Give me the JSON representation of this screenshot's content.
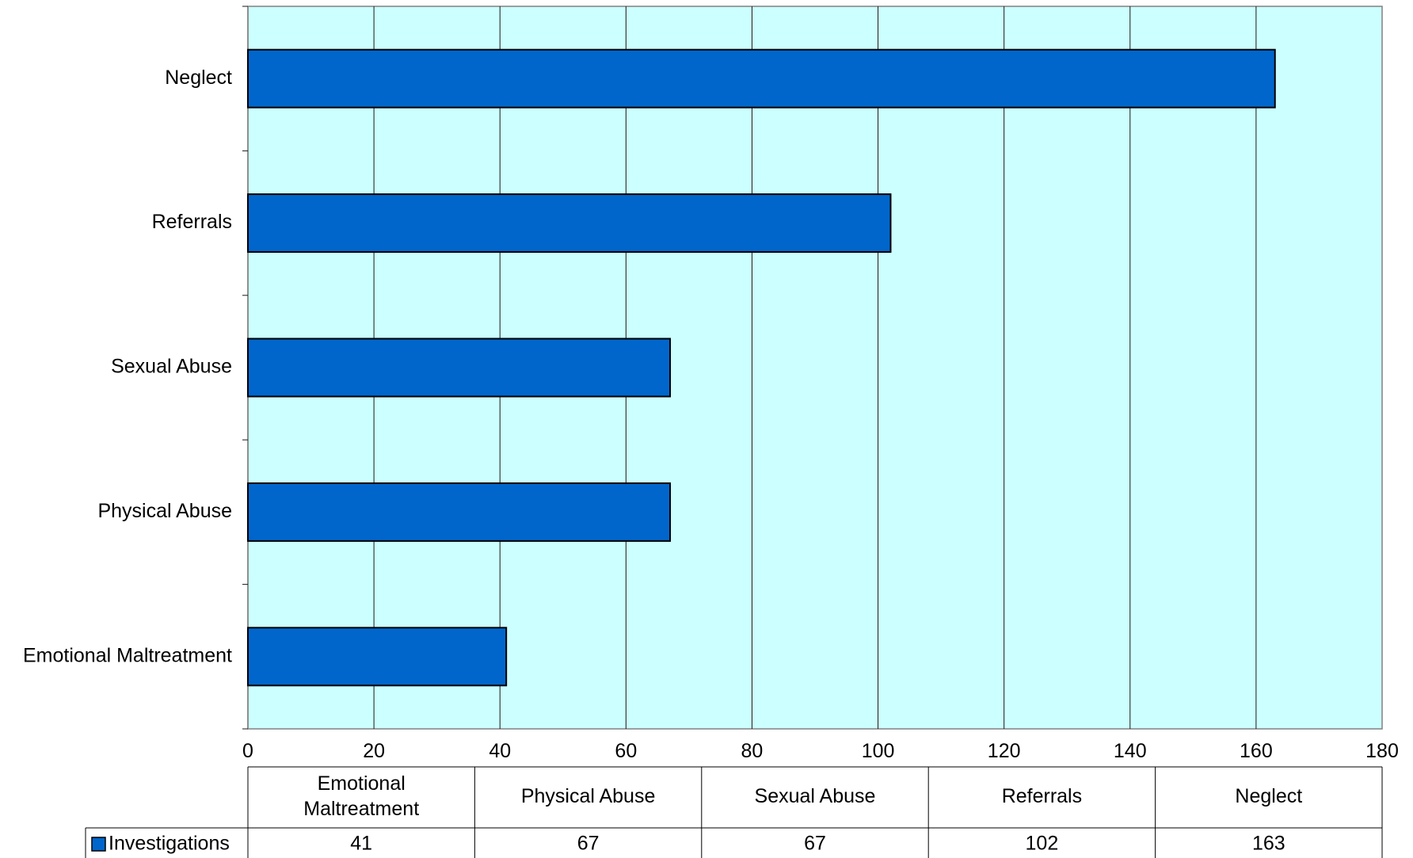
{
  "chart_data": {
    "type": "bar",
    "orientation": "horizontal",
    "categories": [
      "Emotional Maltreatment",
      "Physical Abuse",
      "Sexual Abuse",
      "Referrals",
      "Neglect"
    ],
    "series": [
      {
        "name": "Investigations",
        "values": [
          41,
          67,
          67,
          102,
          163
        ]
      }
    ],
    "xlim": [
      0,
      180
    ],
    "x_ticks": [
      0,
      20,
      40,
      60,
      80,
      100,
      120,
      140,
      160,
      180
    ],
    "title": "",
    "xlabel": "",
    "ylabel": "",
    "grid": true,
    "legend": "data-table-bottom",
    "data_table": {
      "header_lines": [
        [
          "Emotional",
          "Maltreatment"
        ],
        [
          "Physical Abuse"
        ],
        [
          "Sexual Abuse"
        ],
        [
          "Referrals"
        ],
        [
          "Neglect"
        ]
      ]
    }
  },
  "colors": {
    "bar_fill": "#0066cc",
    "plot_background": "#ccffff",
    "legend_key": "#0066cc"
  }
}
